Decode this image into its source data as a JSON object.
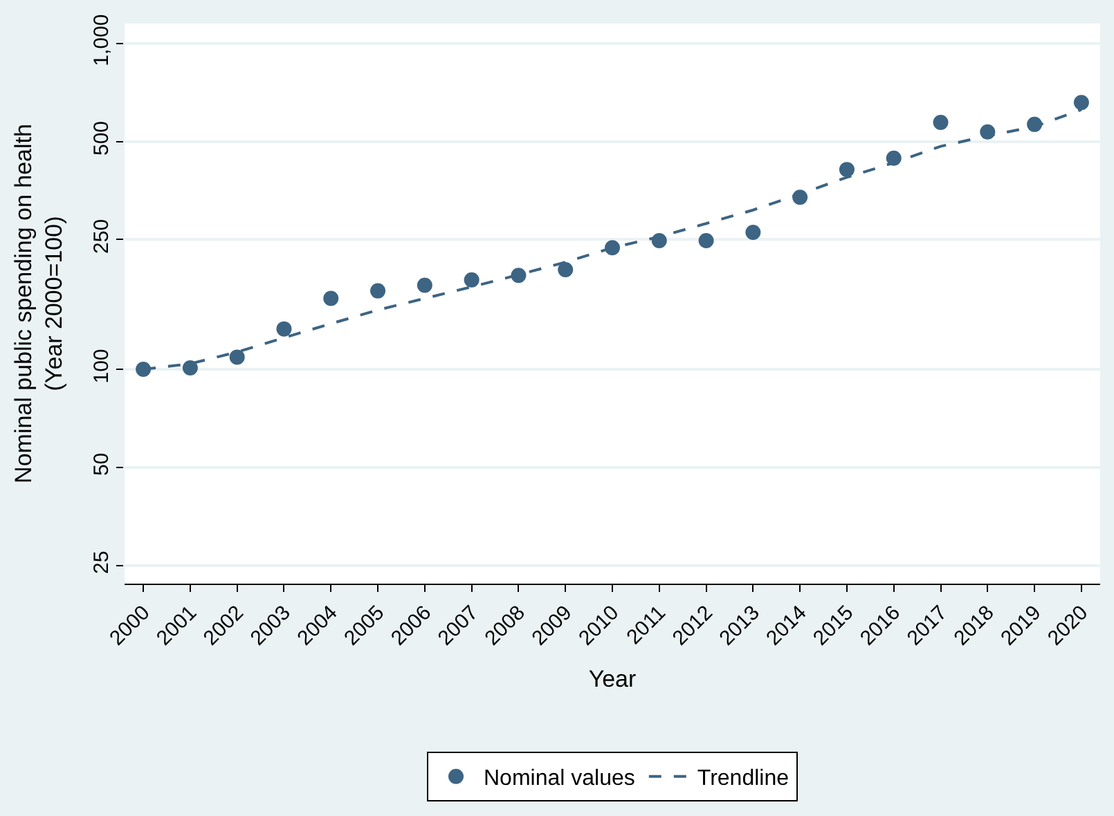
{
  "chart_data": {
    "type": "scatter",
    "xlabel": "Year",
    "ylabel": "Nominal public spending on health\n(Year 2000=100)",
    "x": [
      2000,
      2001,
      2002,
      2003,
      2004,
      2005,
      2006,
      2007,
      2008,
      2009,
      2010,
      2011,
      2012,
      2013,
      2014,
      2015,
      2016,
      2017,
      2018,
      2019,
      2020
    ],
    "series": [
      {
        "name": "Nominal values",
        "color": "#3d6483",
        "marker": "circle",
        "values": [
          100,
          101,
          109,
          133,
          165,
          174,
          181,
          188,
          194,
          202,
          236,
          248,
          248,
          263,
          337,
          410,
          444,
          572,
          535,
          564,
          658
        ]
      },
      {
        "name": "Trendline",
        "type": "line",
        "color": "#3d6483",
        "line_style": "dashed",
        "marker": "none",
        "values": [
          100,
          104,
          113,
          125,
          138,
          152,
          165,
          179,
          195,
          213,
          236,
          255,
          280,
          308,
          345,
          388,
          430,
          483,
          520,
          555,
          626
        ]
      }
    ],
    "log": "y",
    "ylim": [
      22,
      1150
    ],
    "yticks": [
      25,
      50,
      100,
      250,
      500,
      {
        "value": 1000,
        "label": "1,000"
      }
    ],
    "xlim": [
      1999.6,
      2020.4
    ],
    "xticks": [
      2000,
      2001,
      2002,
      2003,
      2004,
      2005,
      2006,
      2007,
      2008,
      2009,
      2010,
      2011,
      2012,
      2013,
      2014,
      2015,
      2016,
      2017,
      2018,
      2019,
      2020
    ],
    "grid": "y",
    "legend": "bottom"
  }
}
